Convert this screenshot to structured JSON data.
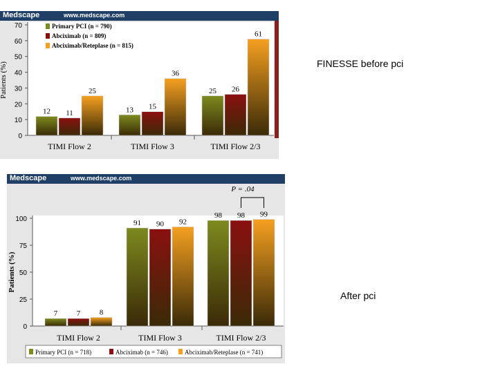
{
  "banner": {
    "logo": "Medscape",
    "url": "www.medscape.com"
  },
  "labels": {
    "before": "FINESSE before pci",
    "after": "After pci"
  },
  "colors": {
    "olive": "#7d8a1e",
    "maroon": "#8a1010",
    "orange": "#f5a020",
    "banner": "#1f3f66"
  },
  "chart_data": [
    {
      "type": "bar",
      "title": "FINESSE before pci",
      "ylabel": "Patients (%)",
      "ylim": [
        0,
        70
      ],
      "yticks": [
        "0",
        "10",
        "20",
        "30",
        "40",
        "50",
        "60",
        "70"
      ],
      "categories": [
        "TIMI Flow 2",
        "TIMI Flow 3",
        "TIMI Flow 2/3"
      ],
      "series": [
        {
          "name": "Primary PCI (n = 790)",
          "values": [
            12,
            13,
            25
          ]
        },
        {
          "name": "Abciximab (n = 809)",
          "values": [
            11,
            15,
            26
          ]
        },
        {
          "name": "Abciximab/Reteplase (n = 815)",
          "values": [
            25,
            36,
            61
          ]
        }
      ],
      "legend": "top-left"
    },
    {
      "type": "bar",
      "title": "After pci",
      "ylabel": "Patients (%)",
      "ylim": [
        0,
        100
      ],
      "yticks": [
        "0",
        "25",
        "50",
        "75",
        "100"
      ],
      "categories": [
        "TIMI Flow 2",
        "TIMI Flow 3",
        "TIMI Flow 2/3"
      ],
      "series": [
        {
          "name": "Primary PCI (n = 718)",
          "values": [
            7,
            91,
            98
          ]
        },
        {
          "name": "Abciximab (n = 746)",
          "values": [
            7,
            90,
            98
          ]
        },
        {
          "name": "Abciximab/Reteplase (n = 741)",
          "values": [
            8,
            92,
            99
          ]
        }
      ],
      "annotation": "P = .04",
      "legend": "bottom"
    }
  ]
}
